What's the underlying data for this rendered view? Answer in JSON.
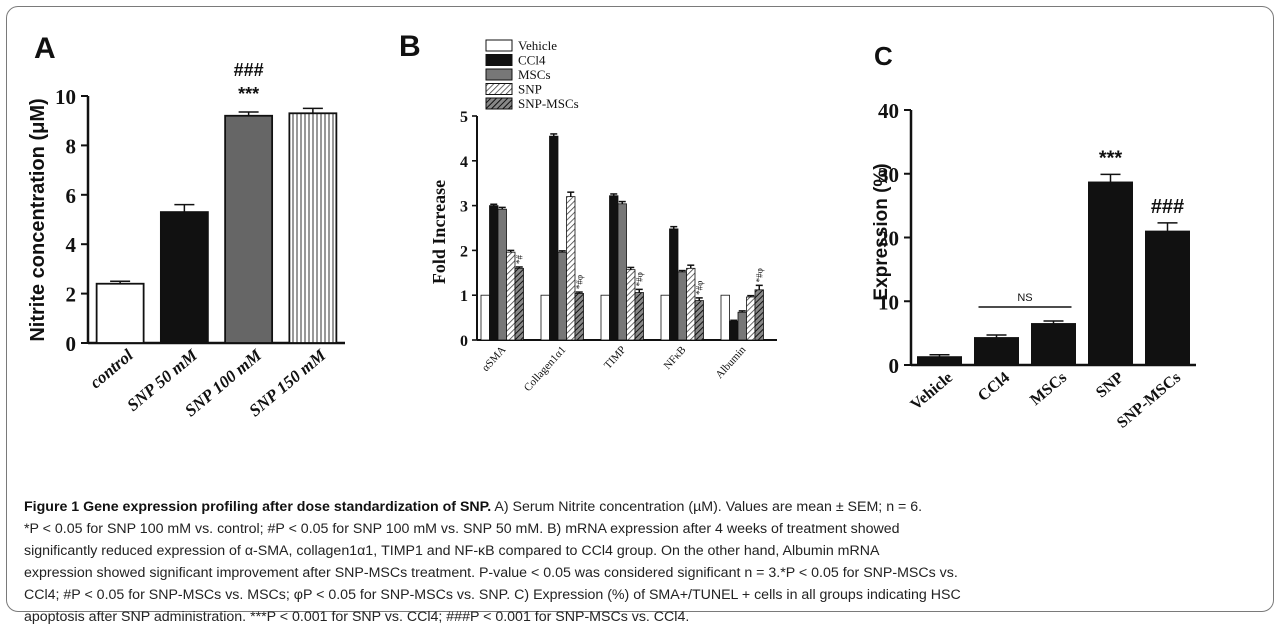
{
  "panels": [
    "A",
    "B",
    "C"
  ],
  "caption": {
    "title": "Figure 1 Gene expression profiling after dose standardization of SNP.",
    "line1": " A) Serum Nitrite concentration (µM). Values are mean ± SEM; n = 6.",
    "line2": "*P < 0.05 for SNP 100 mM vs. control; #P < 0.05 for SNP 100 mM vs. SNP 50 mM. B) mRNA expression after 4 weeks of treatment showed",
    "line3": "significantly reduced expression of α-SMA, collagen1α1, TIMP1 and NF-κB compared to CCl4 group. On the other hand, Albumin mRNA",
    "line4": "expression showed significant improvement after SNP-MSCs treatment. P-value < 0.05 was considered significant n = 3.*P < 0.05 for SNP-MSCs vs.",
    "line5": "CCl4; #P < 0.05 for SNP-MSCs vs. MSCs; φP < 0.05 for SNP-MSCs vs. SNP. C) Expression (%) of SMA+/TUNEL + cells in all groups indicating HSC",
    "line6": "apoptosis after SNP administration. ***P < 0.001 for SNP vs. CCl4; ###P < 0.001 for SNP-MSCs vs. CCl4."
  },
  "chart_data": [
    {
      "type": "bar",
      "panel": "A",
      "categories": [
        "control",
        "SNP 50 mM",
        "SNP 100 mM",
        "SNP 150 mM"
      ],
      "values": [
        2.4,
        5.3,
        9.2,
        9.3
      ],
      "errors": [
        0.1,
        0.3,
        0.15,
        0.2
      ],
      "ylabel": "Nitrite concentration (μM)",
      "ylim": [
        0,
        10
      ],
      "yticks": [
        "0",
        "2",
        "4",
        "6",
        "8",
        "10"
      ],
      "annotations": [
        {
          "category": "SNP 100 mM",
          "lines": [
            "###",
            "***"
          ]
        }
      ],
      "colors": [
        "#ffffff",
        "#111111",
        "#666666",
        "hatch-vertical"
      ]
    },
    {
      "type": "bar",
      "panel": "B",
      "categories": [
        "αSMA",
        "Collagen1α1",
        "TIMP",
        "NFκB",
        "Albumin"
      ],
      "ylabel": "Fold Increase",
      "ylim": [
        0,
        5
      ],
      "yticks": [
        "0",
        "1",
        "2",
        "3",
        "4",
        "5"
      ],
      "legend": [
        "Vehicle",
        "CCl4",
        "MSCs",
        "SNP",
        "SNP-MSCs"
      ],
      "series": [
        {
          "name": "Vehicle",
          "values": [
            1,
            1,
            1,
            1,
            1
          ],
          "errors": [
            0,
            0,
            0,
            0,
            0
          ]
        },
        {
          "name": "CCl4",
          "values": [
            3.0,
            4.55,
            3.22,
            2.48,
            0.42
          ],
          "errors": [
            0.03,
            0.05,
            0.04,
            0.05,
            0.02
          ]
        },
        {
          "name": "MSCs",
          "values": [
            2.92,
            1.96,
            3.04,
            1.52,
            0.62
          ],
          "errors": [
            0.04,
            0.03,
            0.05,
            0.03,
            0.03
          ]
        },
        {
          "name": "SNP",
          "values": [
            1.96,
            3.2,
            1.57,
            1.6,
            0.96
          ],
          "errors": [
            0.04,
            0.1,
            0.05,
            0.07,
            0.03
          ]
        },
        {
          "name": "SNP-MSCs",
          "values": [
            1.6,
            1.04,
            1.06,
            0.88,
            1.12
          ],
          "errors": [
            0.03,
            0.03,
            0.07,
            0.06,
            0.1
          ]
        }
      ],
      "annotations": [
        {
          "category": "αSMA",
          "text": "*#"
        },
        {
          "category": "Collagen1α1",
          "text": "*#φ"
        },
        {
          "category": "TIMP",
          "text": "*#φ"
        },
        {
          "category": "NFκB",
          "text": "*#φ"
        },
        {
          "category": "Albumin",
          "text": "*#φ"
        }
      ]
    },
    {
      "type": "bar",
      "panel": "C",
      "categories": [
        "Vehicle",
        "CCl4",
        "MSCs",
        "SNP",
        "SNP-MSCs"
      ],
      "values": [
        1.3,
        4.3,
        6.5,
        28.7,
        21.0
      ],
      "errors": [
        0.3,
        0.4,
        0.4,
        1.2,
        1.3
      ],
      "ylabel": "Expression (%)",
      "ylim": [
        0,
        40
      ],
      "yticks": [
        "0",
        "10",
        "20",
        "30",
        "40"
      ],
      "annotations": [
        {
          "category": "SNP",
          "text": "***"
        },
        {
          "category": "SNP-MSCs",
          "text": "###"
        },
        {
          "between": [
            "CCl4",
            "MSCs"
          ],
          "text": "NS"
        }
      ]
    }
  ]
}
